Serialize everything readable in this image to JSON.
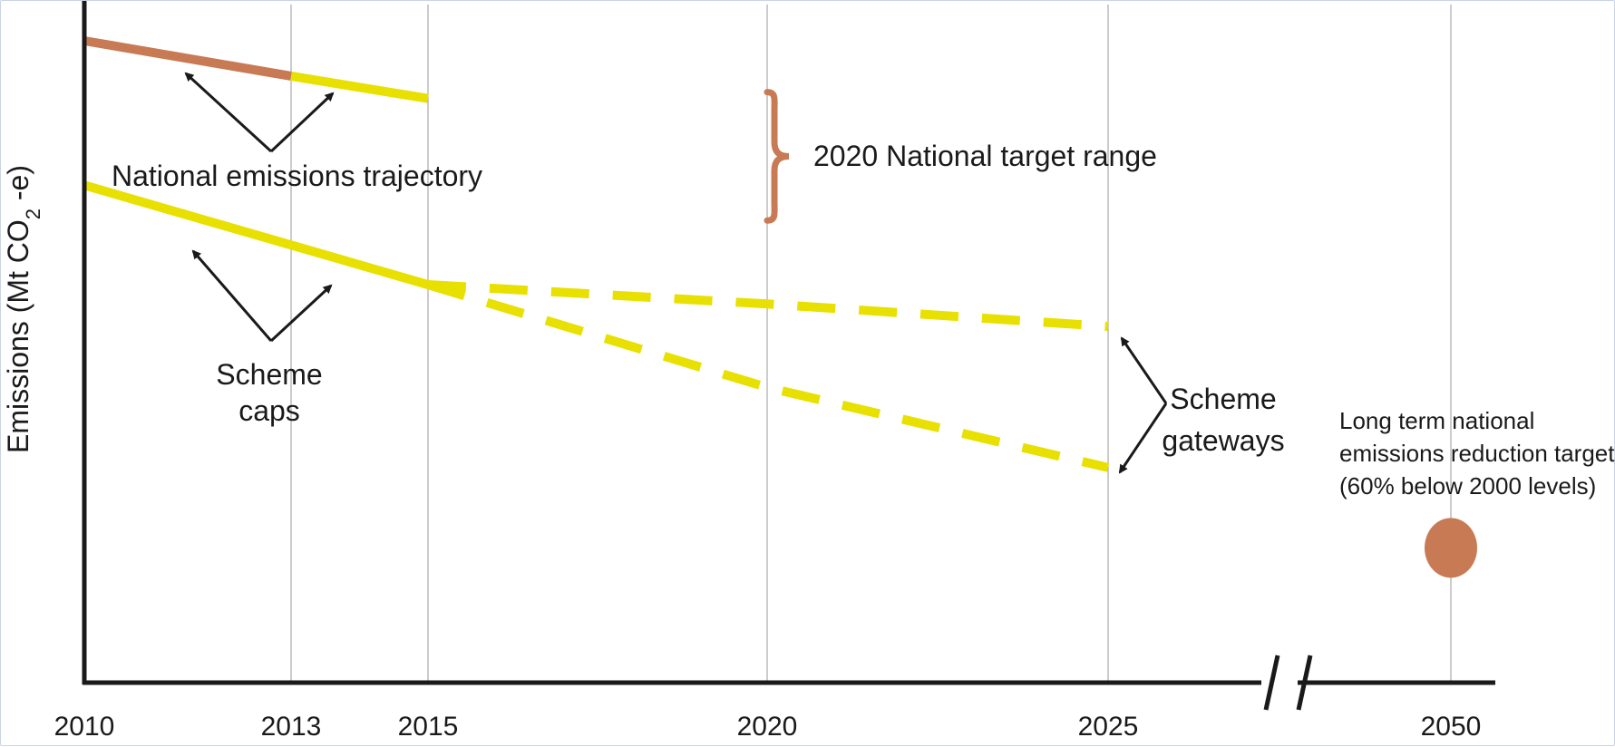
{
  "chart_data": {
    "type": "line",
    "title": "",
    "xlabel": "",
    "ylabel": {
      "main": "Emissions (Mt CO",
      "subscript": "2",
      "suffix": " -e)"
    },
    "x_ticks": [
      "2010",
      "2013",
      "2015",
      "2020",
      "2025",
      "2050"
    ],
    "axis_break": "between 2025 and 2050",
    "grid": "vertical lines at each tick",
    "series": [
      {
        "id": "national-trajectory-historic",
        "style": "solid",
        "color": "#c87a55",
        "x": [
          2010,
          2013
        ],
        "y": [
          100,
          94.5
        ]
      },
      {
        "id": "national-trajectory-projected",
        "style": "solid",
        "color": "#e8e000",
        "x": [
          2013,
          2015
        ],
        "y": [
          94.5,
          91
        ]
      },
      {
        "id": "scheme-caps",
        "style": "solid",
        "color": "#e8e000",
        "x": [
          2010,
          2015
        ],
        "y": [
          77.5,
          62
        ]
      },
      {
        "id": "gateway-upper",
        "style": "dashed",
        "color": "#e8e000",
        "x": [
          2015,
          2020,
          2025
        ],
        "y": [
          62,
          59,
          55.5
        ]
      },
      {
        "id": "gateway-lower",
        "style": "dashed",
        "color": "#e8e000",
        "x": [
          2015,
          2020,
          2025
        ],
        "y": [
          62,
          46,
          33.5
        ]
      }
    ],
    "target_range_2020": {
      "x": 2020,
      "y_low": 72,
      "y_high": 92,
      "color": "#c87a55"
    },
    "long_term_target": {
      "x": 2050,
      "y": 21,
      "color": "#c87a55"
    },
    "annotations": {
      "national_trajectory": "National emissions trajectory",
      "target_range": "2020 National target range",
      "scheme_caps": [
        "Scheme",
        "caps"
      ],
      "scheme_gateways": [
        "Scheme",
        "gateways"
      ],
      "long_term": [
        "Long term national",
        "emissions reduction target",
        "(60% below 2000 levels)"
      ]
    }
  }
}
